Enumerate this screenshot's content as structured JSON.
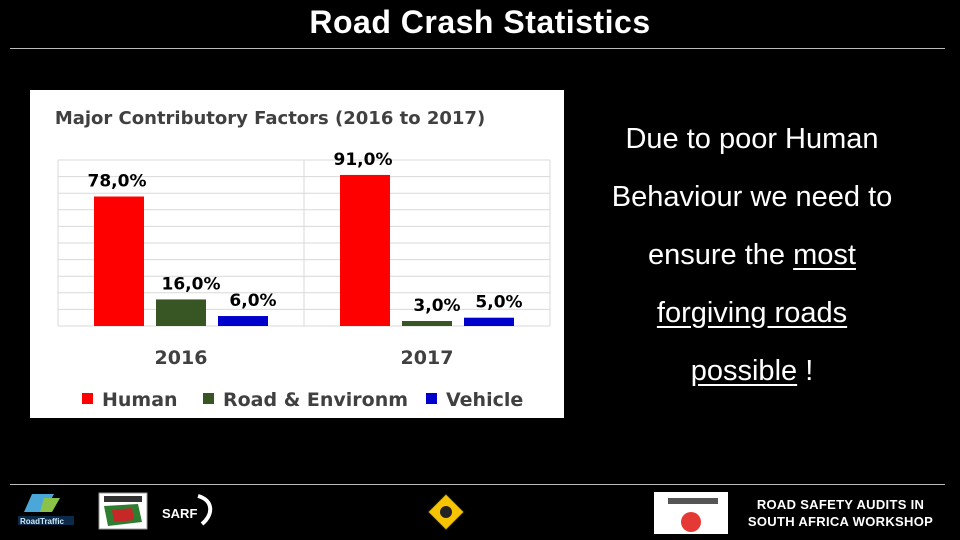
{
  "slide": {
    "title": "Road Crash Statistics",
    "text": {
      "line1": "Due to poor Human",
      "line2": "Behaviour we need to",
      "line3_pre": "ensure the ",
      "line3_u": "most",
      "line4_u": "forgiving roads",
      "line5_u": "possible",
      "line5_post": " !"
    },
    "footer": {
      "line1": "ROAD SAFETY AUDITS IN",
      "line2": "SOUTH AFRICA WORKSHOP"
    },
    "logos": {
      "road_traffic": "RoadTraffic",
      "sarf": "SARF"
    }
  },
  "chart_data": {
    "type": "bar",
    "title": "Major Contributory Factors (2016 to 2017)",
    "categories": [
      "2016",
      "2017"
    ],
    "series": [
      {
        "name": "Human",
        "values": [
          78.0,
          91.0
        ],
        "labels": [
          "78,0%",
          "91,0%"
        ],
        "color": "#ff0000"
      },
      {
        "name": "Road & Environm",
        "values": [
          16.0,
          3.0
        ],
        "labels": [
          "16,0%",
          "3,0%"
        ],
        "color": "#375623"
      },
      {
        "name": "Vehicle",
        "values": [
          6.0,
          5.0
        ],
        "labels": [
          "6,0%",
          "5,0%"
        ],
        "color": "#0000cc"
      }
    ],
    "ylim": [
      0,
      100
    ],
    "grid": true,
    "legend": "bottom"
  }
}
